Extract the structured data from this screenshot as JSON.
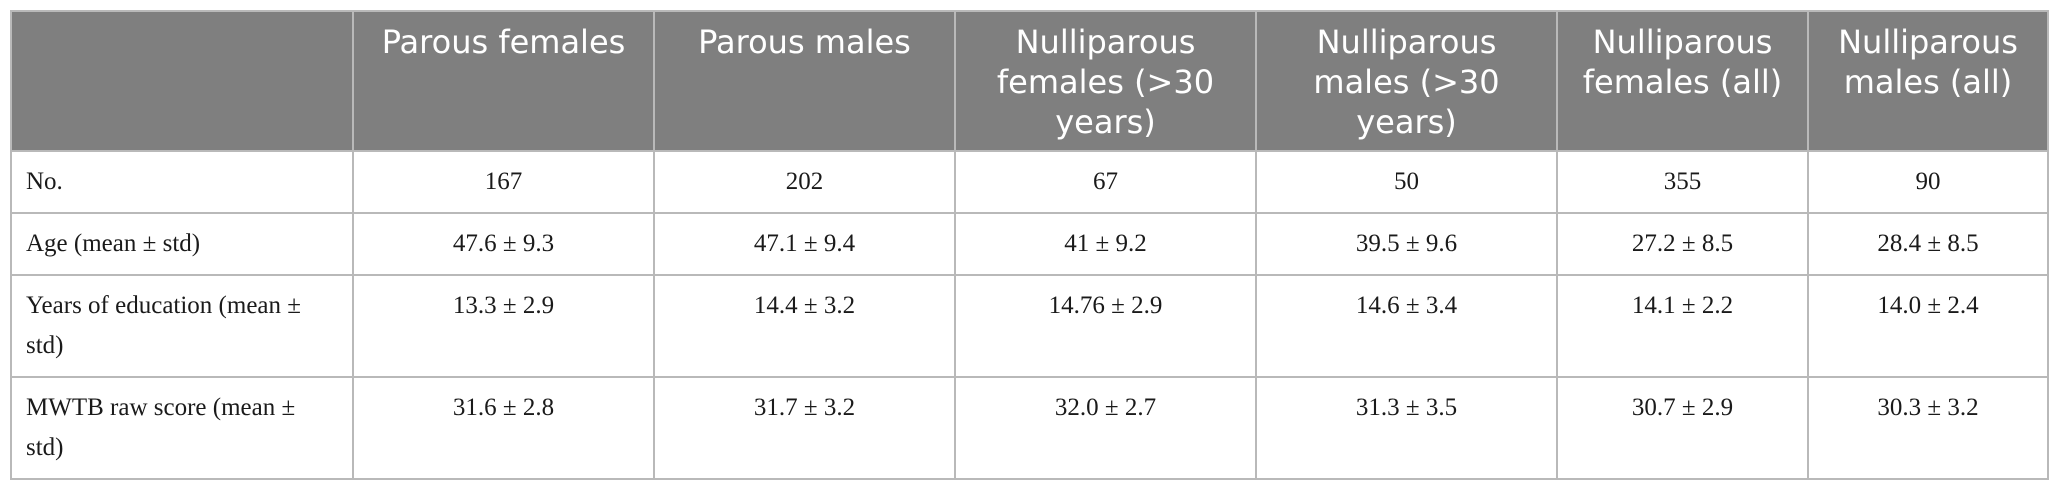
{
  "columns": [
    "",
    "Parous females",
    "Parous males",
    "Nulliparous females (>30 years)",
    "Nulliparous males (>30 years)",
    "Nulliparous females (all)",
    "Nulliparous males (all)"
  ],
  "rows": [
    {
      "label": "No.",
      "values": [
        "167",
        "202",
        "67",
        "50",
        "355",
        "90"
      ]
    },
    {
      "label": "Age (mean ± std)",
      "values": [
        "47.6 ± 9.3",
        "47.1 ± 9.4",
        "41 ± 9.2",
        "39.5 ± 9.6",
        "27.2 ± 8.5",
        "28.4 ± 8.5"
      ]
    },
    {
      "label": "Years of education (mean ± std)",
      "values": [
        "13.3 ± 2.9",
        "14.4 ± 3.2",
        "14.76 ± 2.9",
        "14.6 ± 3.4",
        "14.1 ± 2.2",
        "14.0 ± 2.4"
      ]
    },
    {
      "label": "MWTB raw score (mean ± std)",
      "values": [
        "31.6 ± 2.8",
        "31.7 ± 3.2",
        "32.0 ± 2.7",
        "31.3 ± 3.5",
        "30.7 ± 2.9",
        "30.3 ± 3.2"
      ]
    }
  ]
}
